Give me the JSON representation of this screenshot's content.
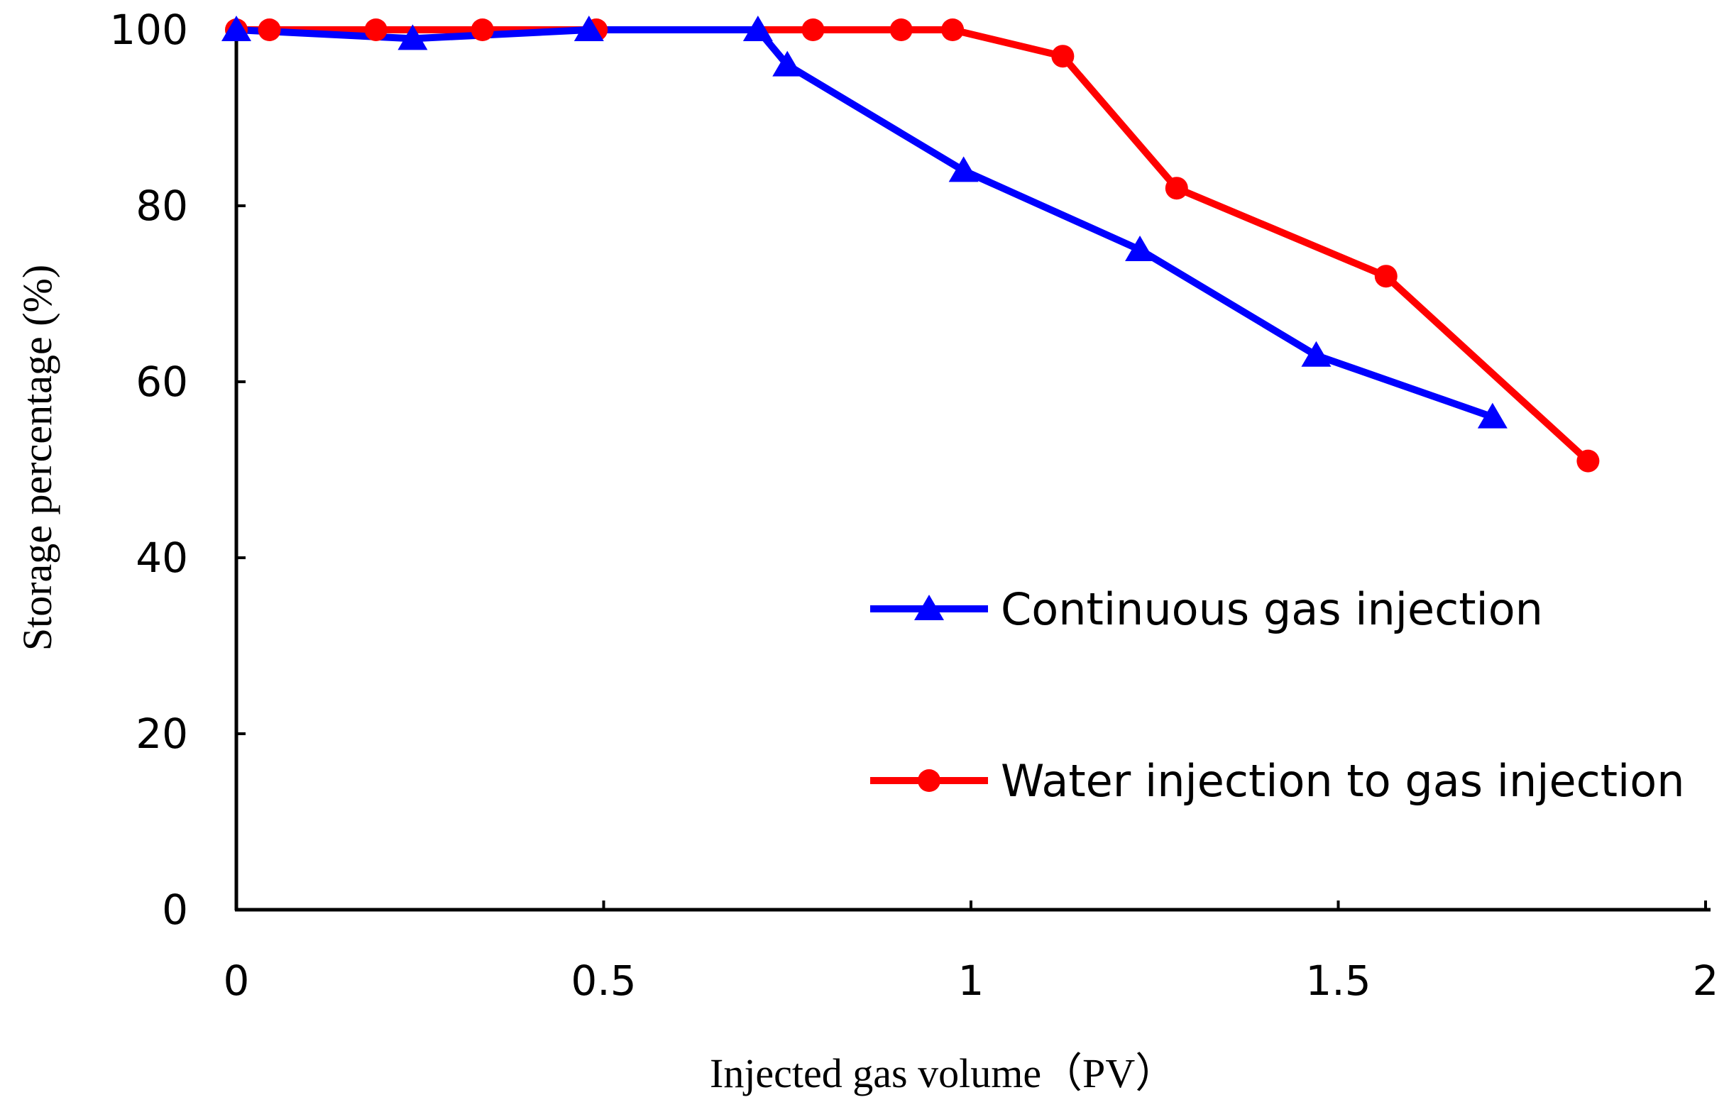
{
  "chart_data": {
    "type": "line",
    "title": "",
    "xlabel": "Injected gas volume（PV）",
    "ylabel": "Storage percentage (%)",
    "xlim": [
      0,
      2
    ],
    "ylim": [
      0,
      100
    ],
    "xticks": [
      0,
      0.5,
      1,
      1.5,
      2
    ],
    "xtick_labels": [
      "0",
      "0.5",
      "1",
      "1.5",
      "2"
    ],
    "yticks": [
      0,
      20,
      40,
      60,
      80,
      100
    ],
    "ytick_labels": [
      "0",
      "20",
      "40",
      "60",
      "80",
      "100"
    ],
    "grid": false,
    "legend_position": "lower-right",
    "series": [
      {
        "name": "Continuous gas injection",
        "color": "#0000ff",
        "marker": "triangle",
        "x": [
          0,
          0.24,
          0.48,
          0.71,
          0.75,
          0.99,
          1.23,
          1.47,
          1.71
        ],
        "y": [
          100,
          99,
          100,
          100,
          96,
          84,
          75,
          63,
          56
        ]
      },
      {
        "name": "Water injection to gas injection",
        "color": "#ff0000",
        "marker": "circle",
        "x": [
          0,
          0.045,
          0.19,
          0.335,
          0.49,
          0.785,
          0.905,
          0.975,
          1.125,
          1.28,
          1.565,
          1.84
        ],
        "y": [
          100,
          100,
          100,
          100,
          100,
          100,
          100,
          100,
          97,
          82,
          72,
          51
        ]
      }
    ]
  }
}
